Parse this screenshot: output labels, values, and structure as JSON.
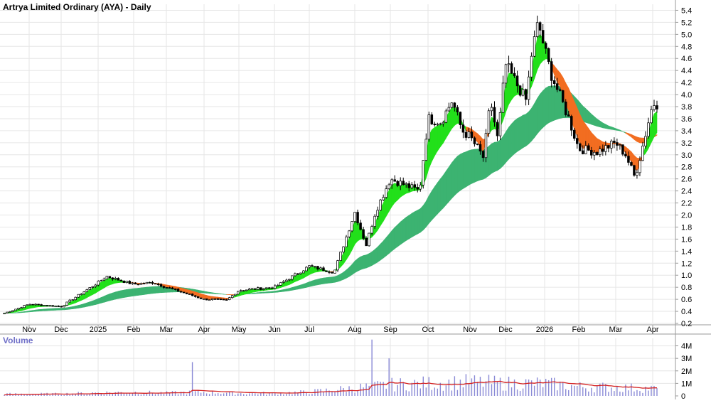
{
  "colors": {
    "background": "#ffffff",
    "grid": "#e6e6e6",
    "axis": "#9a9a9a",
    "candle": "#000000",
    "ribbon_short_up": "#22e01a",
    "ribbon_short_down": "#f26d21",
    "ribbon_short_down_light": "#f5aaa6",
    "ribbon_long_up": "#3cb371",
    "ribbon_long_down": "#f26d21",
    "volume_bar": "#8a8ad6",
    "volume_avg": "#d42020",
    "volume_label": "#7070c8",
    "text": "#000000"
  },
  "chart_data": [
    {
      "type": "candlestick",
      "title": "Artrya Limited Ordinary (AYA) - Daily",
      "x_tick_labels": [
        "Nov",
        "Dec",
        "2025",
        "Feb",
        "Mar",
        "Apr",
        "May",
        "Jun",
        "Jul",
        "Aug",
        "Sep",
        "Oct",
        "Nov",
        "Dec",
        "2026",
        "Feb",
        "Mar",
        "Apr"
      ],
      "y_tick_labels": [
        "0.2",
        "0.4",
        "0.6",
        "0.8",
        "1.0",
        "1.2",
        "1.4",
        "1.6",
        "1.8",
        "2.0",
        "2.2",
        "2.4",
        "2.6",
        "2.8",
        "3.0",
        "3.2",
        "3.4",
        "3.6",
        "3.8",
        "4.0",
        "4.2",
        "4.4",
        "4.6",
        "4.8",
        "5.0",
        "5.2",
        "5.4"
      ],
      "ylim": [
        0.2,
        5.5
      ],
      "grid": true,
      "indicator": "moving average ribbons (short-term and long-term)",
      "price_path_monthly_approx": [
        {
          "x": "Nov",
          "close": 0.52
        },
        {
          "x": "Dec",
          "close": 0.48
        },
        {
          "x": "2025",
          "close": 0.88
        },
        {
          "x": "Feb",
          "close": 0.85
        },
        {
          "x": "Mar",
          "close": 0.8
        },
        {
          "x": "Apr",
          "close": 0.6
        },
        {
          "x": "May",
          "close": 0.75
        },
        {
          "x": "Jun",
          "close": 0.8
        },
        {
          "x": "Jul",
          "close": 1.15
        },
        {
          "x": "Aug",
          "close": 2.05
        },
        {
          "x": "Sep",
          "close": 2.6
        },
        {
          "x": "Oct",
          "close": 3.6
        },
        {
          "x": "Nov",
          "close": 3.3
        },
        {
          "x": "Dec",
          "close": 4.5
        },
        {
          "x": "2026",
          "close": 4.75
        },
        {
          "x": "Feb",
          "close": 3.1
        },
        {
          "x": "Mar",
          "close": 3.2
        },
        {
          "x": "Apr",
          "close": 3.85
        }
      ],
      "extremes": {
        "high": 5.25,
        "high_near": "2026",
        "low_recent": 2.58,
        "low_recent_near": "Mar"
      }
    },
    {
      "type": "bar",
      "title": "Volume",
      "y_tick_labels": [
        "4M",
        "3M",
        "2M",
        "1M",
        "0"
      ],
      "ylim": [
        0,
        4.6
      ],
      "unit": "M",
      "volume_monthly_avg_approx": [
        0.15,
        0.15,
        0.25,
        0.28,
        0.22,
        0.3,
        0.2,
        0.2,
        0.3,
        0.6,
        0.85,
        0.95,
        1.05,
        0.95,
        0.95,
        0.7,
        0.65,
        0.55
      ],
      "spikes": [
        {
          "x": "Aug",
          "value": 4.5
        },
        {
          "x": "Apr",
          "value": 2.7
        },
        {
          "x": "Sep",
          "value": 3.0
        }
      ]
    }
  ]
}
